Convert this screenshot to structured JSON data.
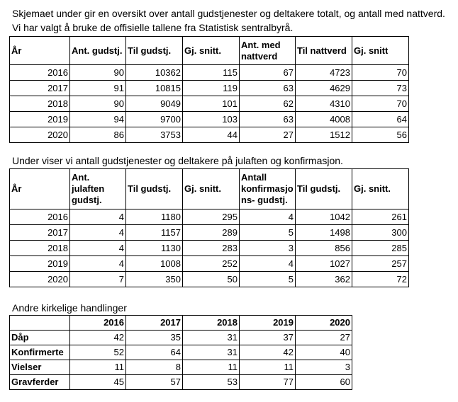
{
  "intro": {
    "line1": "Skjemaet under gir en oversikt over antall gudstjenester og deltakere totalt, og antall med nattverd.",
    "line2": "Vi har valgt å bruke de offisielle tallene fra Statistisk sentralbyrå."
  },
  "table1": {
    "headers": [
      "År",
      "Ant. gudstj.",
      "Til gudstj.",
      "Gj. snitt.",
      "Ant. med nattverd",
      "Til nattverd",
      "Gj. snitt"
    ],
    "rows": [
      [
        "2016",
        "90",
        "10362",
        "115",
        "67",
        "4723",
        "70"
      ],
      [
        "2017",
        "91",
        "10815",
        "119",
        "63",
        "4629",
        "73"
      ],
      [
        "2018",
        "90",
        "9049",
        "101",
        "62",
        "4310",
        "70"
      ],
      [
        "2019",
        "94",
        "9700",
        "103",
        "63",
        "4008",
        "64"
      ],
      [
        "2020",
        "86",
        "3753",
        "44",
        "27",
        "1512",
        "56"
      ]
    ]
  },
  "caption2": "Under viser vi antall gudstjenester og deltakere på julaften og konfirmasjon.",
  "table2": {
    "headers": [
      "År",
      "Ant. julaften gudstj.",
      "Til gudstj.",
      "Gj. snitt.",
      "Antall konfirmasjo ns- gudstj.",
      "Til gudstj.",
      "Gj. snitt."
    ],
    "rows": [
      [
        "2016",
        "4",
        "1180",
        "295",
        "4",
        "1042",
        "261"
      ],
      [
        "2017",
        "4",
        "1157",
        "289",
        "5",
        "1498",
        "300"
      ],
      [
        "2018",
        "4",
        "1130",
        "283",
        "3",
        "856",
        "285"
      ],
      [
        "2019",
        "4",
        "1008",
        "252",
        "4",
        "1027",
        "257"
      ],
      [
        "2020",
        "7",
        "350",
        "50",
        "5",
        "362",
        "72"
      ]
    ]
  },
  "caption3": "Andre kirkelige handlinger",
  "table3": {
    "headers": [
      "",
      "2016",
      "2017",
      "2018",
      "2019",
      "2020"
    ],
    "rows": [
      [
        "Dåp",
        "42",
        "35",
        "31",
        "37",
        "27"
      ],
      [
        "Konfirmerte",
        "52",
        "64",
        "31",
        "42",
        "40"
      ],
      [
        "Vielser",
        "11",
        "8",
        "11",
        "11",
        "3"
      ],
      [
        "Gravferder",
        "45",
        "57",
        "53",
        "77",
        "60"
      ]
    ]
  }
}
